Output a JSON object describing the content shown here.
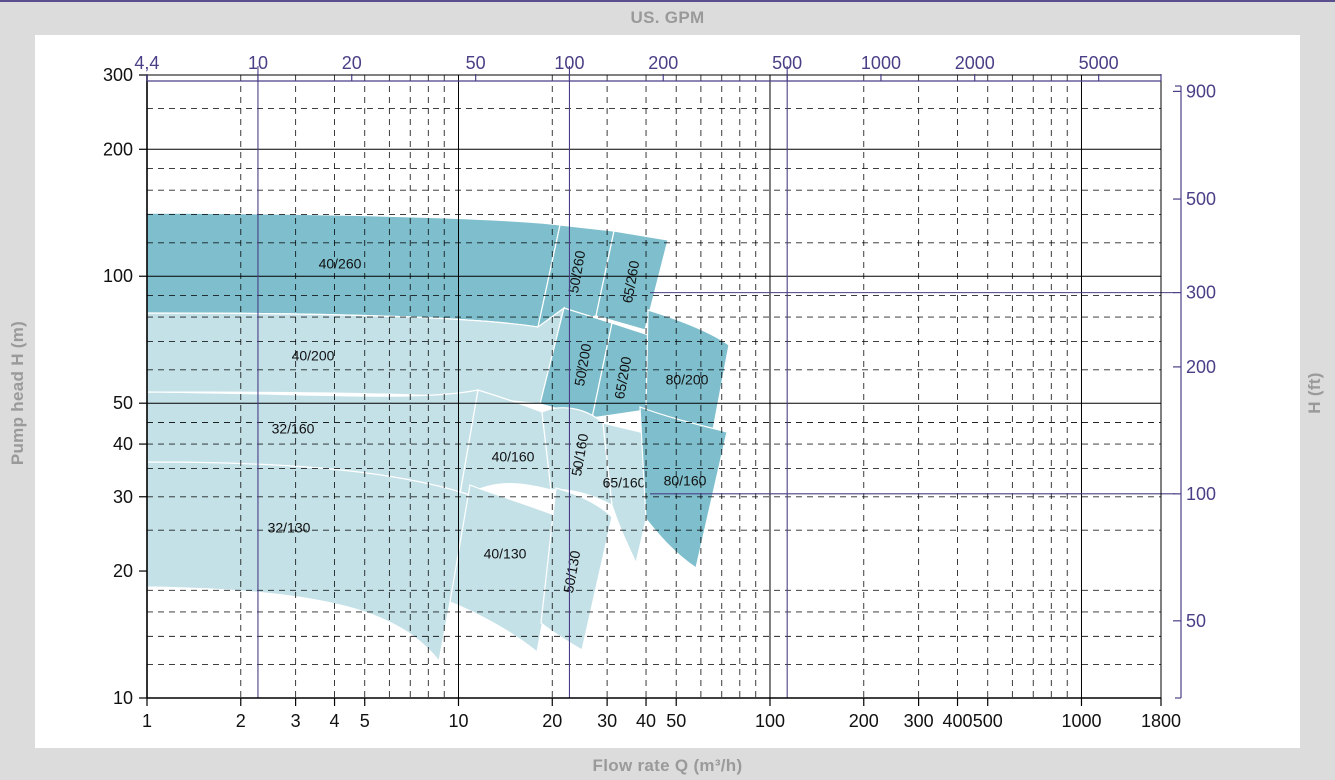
{
  "axis_titles": {
    "top": "US. GPM",
    "bottom": "Flow rate Q (m³/h)",
    "left": "Pump head H (m)",
    "right": "H (ft)"
  },
  "colors": {
    "background": "#dcdcdc",
    "plot_background": "#ffffff",
    "secondary_axis": "#4a3f86",
    "dark_region": "#7fbfcd",
    "light_region": "#c4e1e8",
    "grid": "#000000"
  },
  "chart_data": {
    "type": "area",
    "x_scale": "log",
    "y_scale": "log",
    "xlabel": "Flow rate Q (m³/h)",
    "ylabel": "Pump head H (m)",
    "x2label": "US. GPM",
    "y2label": "H (ft)",
    "xlim": [
      1,
      1800
    ],
    "ylim": [
      10,
      300
    ],
    "x_ticks": [
      "1",
      "2",
      "3",
      "4",
      "5",
      "10",
      "20",
      "30",
      "40",
      "50",
      "100",
      "200",
      "300",
      "400",
      "500",
      "1000",
      "1800"
    ],
    "y_ticks": [
      "10",
      "20",
      "30",
      "40",
      "50",
      "100",
      "200",
      "300"
    ],
    "x2_ticks": [
      "4,4",
      "10",
      "20",
      "50",
      "100",
      "200",
      "500",
      "1000",
      "2000",
      "5000"
    ],
    "y2_ticks": [
      "50",
      "100",
      "200",
      "300",
      "500",
      "900"
    ],
    "grid": true,
    "regions": [
      {
        "label": "40/260",
        "shade": "dark"
      },
      {
        "label": "50/260",
        "shade": "dark"
      },
      {
        "label": "65/260",
        "shade": "dark"
      },
      {
        "label": "40/200",
        "shade": "light"
      },
      {
        "label": "50/200",
        "shade": "dark"
      },
      {
        "label": "65/200",
        "shade": "dark"
      },
      {
        "label": "80/200",
        "shade": "dark"
      },
      {
        "label": "32/160",
        "shade": "light"
      },
      {
        "label": "40/160",
        "shade": "light"
      },
      {
        "label": "50/160",
        "shade": "light"
      },
      {
        "label": "65/160",
        "shade": "light"
      },
      {
        "label": "80/160",
        "shade": "dark"
      },
      {
        "label": "32/130",
        "shade": "light"
      },
      {
        "label": "40/130",
        "shade": "light"
      },
      {
        "label": "50/130",
        "shade": "light"
      }
    ]
  }
}
